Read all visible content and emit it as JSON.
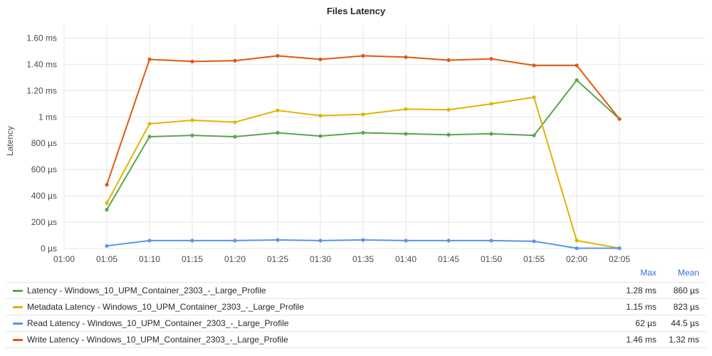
{
  "panel": {
    "title": "Files Latency"
  },
  "chart_data": {
    "type": "line",
    "title": "Files Latency",
    "ylabel": "Latency",
    "xlabel": "",
    "x": [
      "01:05",
      "01:10",
      "01:15",
      "01:20",
      "01:25",
      "01:30",
      "01:35",
      "01:40",
      "01:45",
      "01:50",
      "01:55",
      "02:00",
      "02:05"
    ],
    "x_ticks": [
      "01:00",
      "01:05",
      "01:10",
      "01:15",
      "01:20",
      "01:25",
      "01:30",
      "01:35",
      "01:40",
      "01:45",
      "01:50",
      "01:55",
      "02:00",
      "02:05"
    ],
    "y_ticks": [
      {
        "value": 0,
        "label": "0 µs"
      },
      {
        "value": 200,
        "label": "200 µs"
      },
      {
        "value": 400,
        "label": "400 µs"
      },
      {
        "value": 600,
        "label": "600 µs"
      },
      {
        "value": 800,
        "label": "800 µs"
      },
      {
        "value": 1000,
        "label": "1 ms"
      },
      {
        "value": 1200,
        "label": "1.20 ms"
      },
      {
        "value": 1400,
        "label": "1.40 ms"
      },
      {
        "value": 1600,
        "label": "1.60 ms"
      }
    ],
    "ylim": [
      0,
      1700
    ],
    "grid": true,
    "legend_position": "bottom",
    "series": [
      {
        "name": "Latency - Windows_10_UPM_Container_2303_-_Large_Profile",
        "color": "#56a64b",
        "values": [
          295,
          850,
          860,
          850,
          880,
          855,
          880,
          872,
          865,
          872,
          860,
          1280,
          985
        ]
      },
      {
        "name": "Metadata Latency - Windows_10_UPM_Container_2303_-_Large_Profile",
        "color": "#e0b400",
        "values": [
          345,
          948,
          975,
          960,
          1050,
          1010,
          1020,
          1060,
          1055,
          1100,
          1150,
          60,
          2
        ]
      },
      {
        "name": "Read Latency - Windows_10_UPM_Container_2303_-_Large_Profile",
        "color": "#5794f2",
        "values": [
          20,
          60,
          60,
          60,
          65,
          60,
          65,
          60,
          60,
          60,
          55,
          2,
          2
        ]
      },
      {
        "name": "Write Latency - Windows_10_UPM_Container_2303_-_Large_Profile",
        "color": "#e0590e",
        "values": [
          485,
          1438,
          1422,
          1428,
          1465,
          1438,
          1465,
          1455,
          1432,
          1442,
          1392,
          1392,
          985
        ]
      }
    ]
  },
  "legend": {
    "headers": {
      "max": "Max",
      "mean": "Mean"
    },
    "rows": [
      {
        "name": "Latency - Windows_10_UPM_Container_2303_-_Large_Profile",
        "color": "#56a64b",
        "max": "1.28 ms",
        "mean": "860 µs"
      },
      {
        "name": "Metadata Latency - Windows_10_UPM_Container_2303_-_Large_Profile",
        "color": "#e0b400",
        "max": "1.15 ms",
        "mean": "823 µs"
      },
      {
        "name": "Read Latency - Windows_10_UPM_Container_2303_-_Large_Profile",
        "color": "#5794f2",
        "max": "62 µs",
        "mean": "44.5 µs"
      },
      {
        "name": "Write Latency - Windows_10_UPM_Container_2303_-_Large_Profile",
        "color": "#e0590e",
        "max": "1.46 ms",
        "mean": "1.32 ms"
      }
    ]
  }
}
